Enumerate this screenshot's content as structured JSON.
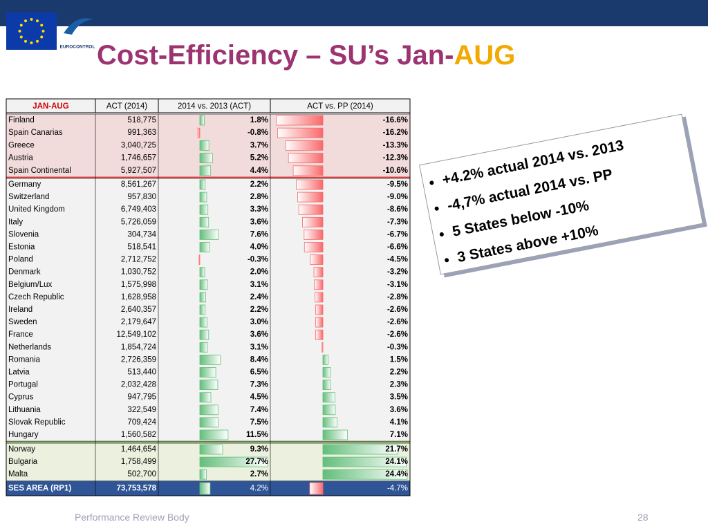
{
  "header": {
    "title_main": "Cost-Efficiency – SU’s Jan-",
    "title_highlight": "AUG",
    "logo_text": "EUROCONTROL"
  },
  "table": {
    "columns": [
      "JAN-AUG",
      "ACT (2014)",
      "2014 vs. 2013 (ACT)",
      "ACT vs. PP (2014)"
    ],
    "rows": [
      [
        "Finland",
        "518,775",
        "1.8%",
        "-16.6%"
      ],
      [
        "Spain Canarias",
        "991,363",
        "-0.8%",
        "-16.2%"
      ],
      [
        "Greece",
        "3,040,725",
        "3.7%",
        "-13.3%"
      ],
      [
        "Austria",
        "1,746,657",
        "5.2%",
        "-12.3%"
      ],
      [
        "Spain Continental",
        "5,927,507",
        "4.4%",
        "-10.6%"
      ],
      [
        "Germany",
        "8,561,267",
        "2.2%",
        "-9.5%"
      ],
      [
        "Switzerland",
        "957,830",
        "2.8%",
        "-9.0%"
      ],
      [
        "United Kingdom",
        "6,749,403",
        "3.3%",
        "-8.6%"
      ],
      [
        "Italy",
        "5,726,059",
        "3.6%",
        "-7.3%"
      ],
      [
        "Slovenia",
        "304,734",
        "7.6%",
        "-6.7%"
      ],
      [
        "Estonia",
        "518,541",
        "4.0%",
        "-6.6%"
      ],
      [
        "Poland",
        "2,712,752",
        "-0.3%",
        "-4.5%"
      ],
      [
        "Denmark",
        "1,030,752",
        "2.0%",
        "-3.2%"
      ],
      [
        "Belgium/Lux",
        "1,575,998",
        "3.1%",
        "-3.1%"
      ],
      [
        "Czech Republic",
        "1,628,958",
        "2.4%",
        "-2.8%"
      ],
      [
        "Ireland",
        "2,640,357",
        "2.2%",
        "-2.6%"
      ],
      [
        "Sweden",
        "2,179,647",
        "3.0%",
        "-2.6%"
      ],
      [
        "France",
        "12,549,102",
        "3.6%",
        "-2.6%"
      ],
      [
        "Netherlands",
        "1,854,724",
        "3.1%",
        "-0.3%"
      ],
      [
        "Romania",
        "2,726,359",
        "8.4%",
        "1.5%"
      ],
      [
        "Latvia",
        "513,440",
        "6.5%",
        "2.2%"
      ],
      [
        "Portugal",
        "2,032,428",
        "7.3%",
        "2.3%"
      ],
      [
        "Cyprus",
        "947,795",
        "4.5%",
        "3.5%"
      ],
      [
        "Lithuania",
        "322,549",
        "7.4%",
        "3.6%"
      ],
      [
        "Slovak Republic",
        "709,424",
        "7.5%",
        "4.1%"
      ],
      [
        "Hungary",
        "1,560,582",
        "11.5%",
        "7.1%"
      ],
      [
        "Norway",
        "1,464,654",
        "9.3%",
        "21.7%"
      ],
      [
        "Bulgaria",
        "1,758,499",
        "27.7%",
        "24.1%"
      ],
      [
        "Malta",
        "502,700",
        "2.7%",
        "24.4%"
      ]
    ],
    "total": [
      "SES AREA (RP1)",
      "73,753,578",
      "4.2%",
      "-4.7%"
    ]
  },
  "bullets": [
    "+4.2% actual 2014 vs. 2013",
    "-4,7% actual 2014 vs. PP",
    "5 States below -10%",
    "3 States above +10%"
  ],
  "footer": {
    "left": "Performance Review Body",
    "page": "28"
  }
}
